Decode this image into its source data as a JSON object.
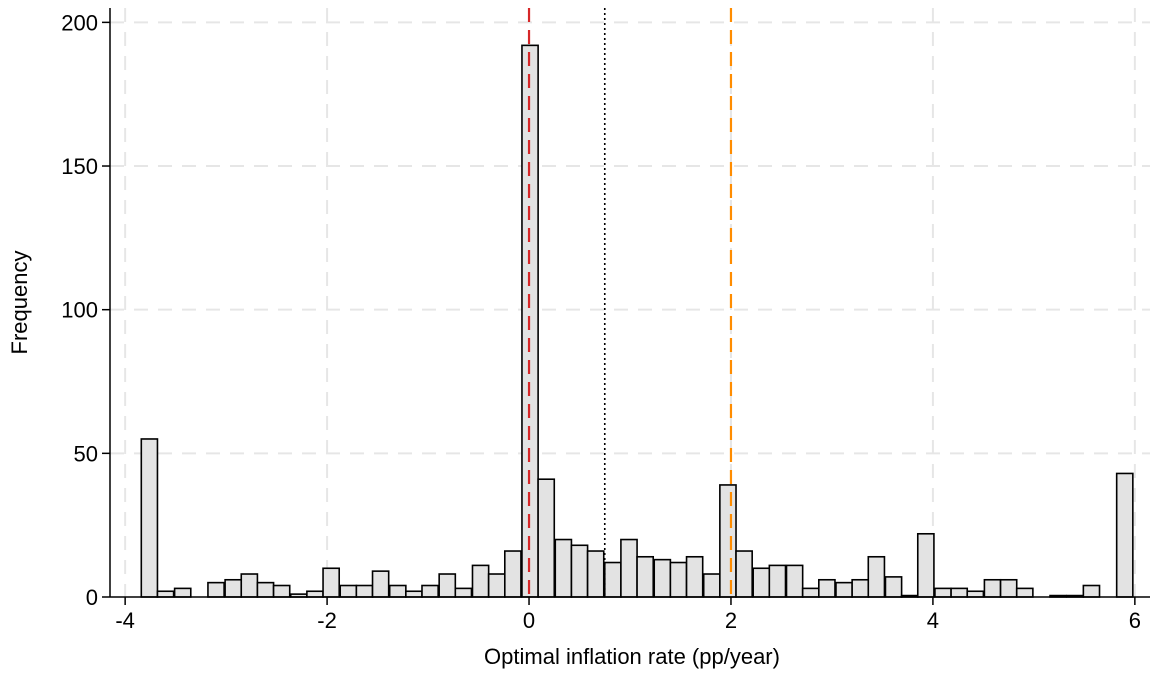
{
  "chart_data": {
    "type": "bar",
    "title": "",
    "xlabel": "Optimal inflation rate (pp/year)",
    "ylabel": "Frequency",
    "xlim": [
      -4.15,
      6.15
    ],
    "ylim": [
      0,
      205
    ],
    "xticks": [
      -4,
      -2,
      0,
      2,
      4,
      6
    ],
    "xtick_labels": [
      "-4",
      "-2",
      "0",
      "2",
      "4",
      "6"
    ],
    "yticks": [
      0,
      50,
      100,
      150,
      200
    ],
    "ytick_labels": [
      "0",
      "50",
      "100",
      "150",
      "200"
    ],
    "grid": true,
    "bar_width": 0.16,
    "bars": [
      {
        "x": -3.76,
        "value": 55
      },
      {
        "x": -3.6,
        "value": 2
      },
      {
        "x": -3.43,
        "value": 3
      },
      {
        "x": -3.1,
        "value": 5
      },
      {
        "x": -2.93,
        "value": 6
      },
      {
        "x": -2.77,
        "value": 8
      },
      {
        "x": -2.61,
        "value": 5
      },
      {
        "x": -2.45,
        "value": 4
      },
      {
        "x": -2.28,
        "value": 1
      },
      {
        "x": -2.12,
        "value": 2
      },
      {
        "x": -1.96,
        "value": 10
      },
      {
        "x": -1.79,
        "value": 4
      },
      {
        "x": -1.63,
        "value": 4
      },
      {
        "x": -1.47,
        "value": 9
      },
      {
        "x": -1.3,
        "value": 4
      },
      {
        "x": -1.14,
        "value": 2
      },
      {
        "x": -0.98,
        "value": 4
      },
      {
        "x": -0.81,
        "value": 8
      },
      {
        "x": -0.65,
        "value": 3
      },
      {
        "x": -0.48,
        "value": 11
      },
      {
        "x": -0.32,
        "value": 8
      },
      {
        "x": -0.16,
        "value": 16
      },
      {
        "x": 0.01,
        "value": 192
      },
      {
        "x": 0.17,
        "value": 41
      },
      {
        "x": 0.34,
        "value": 20
      },
      {
        "x": 0.5,
        "value": 18
      },
      {
        "x": 0.66,
        "value": 16
      },
      {
        "x": 0.83,
        "value": 12
      },
      {
        "x": 0.99,
        "value": 20
      },
      {
        "x": 1.15,
        "value": 14
      },
      {
        "x": 1.32,
        "value": 13
      },
      {
        "x": 1.48,
        "value": 12
      },
      {
        "x": 1.64,
        "value": 14
      },
      {
        "x": 1.81,
        "value": 8
      },
      {
        "x": 1.97,
        "value": 39
      },
      {
        "x": 2.13,
        "value": 16
      },
      {
        "x": 2.3,
        "value": 10
      },
      {
        "x": 2.46,
        "value": 11
      },
      {
        "x": 2.63,
        "value": 11
      },
      {
        "x": 2.79,
        "value": 3
      },
      {
        "x": 2.95,
        "value": 6
      },
      {
        "x": 3.12,
        "value": 5
      },
      {
        "x": 3.28,
        "value": 6
      },
      {
        "x": 3.44,
        "value": 14
      },
      {
        "x": 3.61,
        "value": 7
      },
      {
        "x": 3.77,
        "value": 0.5
      },
      {
        "x": 3.93,
        "value": 22
      },
      {
        "x": 4.1,
        "value": 3
      },
      {
        "x": 4.26,
        "value": 3
      },
      {
        "x": 4.42,
        "value": 2
      },
      {
        "x": 4.59,
        "value": 6
      },
      {
        "x": 4.75,
        "value": 6
      },
      {
        "x": 4.91,
        "value": 3
      },
      {
        "x": 5.24,
        "value": 0.5
      },
      {
        "x": 5.41,
        "value": 0.5
      },
      {
        "x": 5.57,
        "value": 4
      },
      {
        "x": 5.9,
        "value": 43
      }
    ],
    "reference_lines": [
      {
        "x": 0.0,
        "color": "#d62728",
        "style": "dashed"
      },
      {
        "x": 0.75,
        "color": "#000000",
        "style": "dotted"
      },
      {
        "x": 2.0,
        "color": "#ff8c00",
        "style": "dashed"
      }
    ],
    "colors": {
      "bar_fill": "#e3e3e3",
      "bar_stroke": "#000000",
      "grid": "#e6e6e6"
    }
  }
}
